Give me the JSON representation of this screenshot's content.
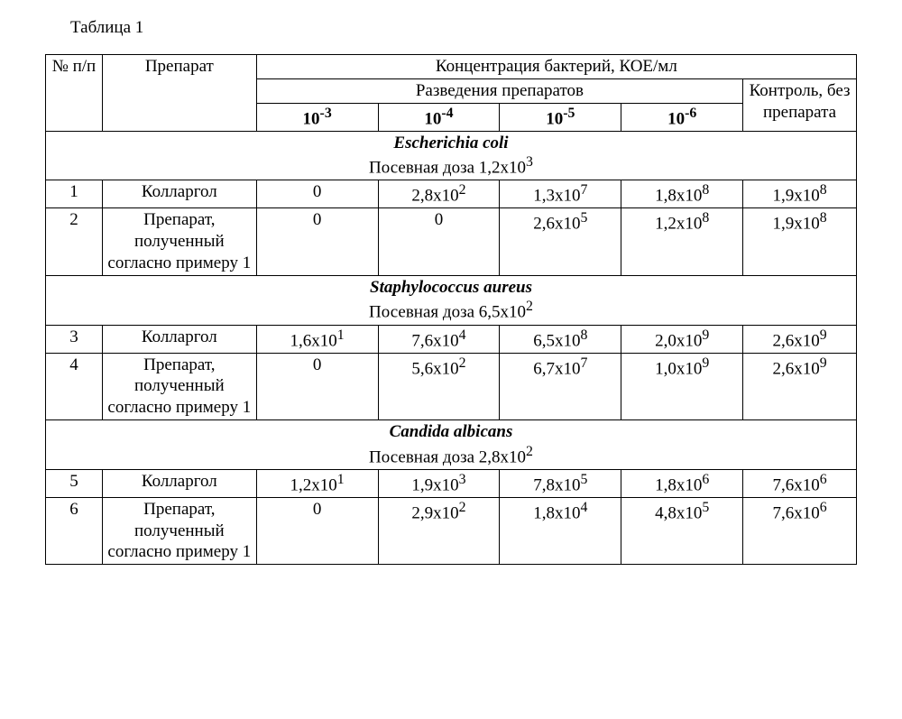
{
  "tableLabel": "Таблица 1",
  "headers": {
    "num": "№ п/п",
    "prep": "Препарат",
    "concHeader": "Концентрация бактерий,  КОЕ/мл",
    "dilutionsHeader": "Разведения препаратов",
    "controlHeader": "Контроль, без препарата",
    "d1": {
      "base": "10",
      "exp": "-3"
    },
    "d2": {
      "base": "10",
      "exp": "-4"
    },
    "d3": {
      "base": "10",
      "exp": "-5"
    },
    "d4": {
      "base": "10",
      "exp": "-6"
    }
  },
  "sections": [
    {
      "organism": "Escherichia coli",
      "doseLabel": "Посевная доза 1,2х10",
      "doseExp": "3",
      "rows": [
        {
          "num": "1",
          "prep": "Колларгол",
          "d1": {
            "plain": "0"
          },
          "d2": {
            "base": "2,8х10",
            "exp": "2"
          },
          "d3": {
            "base": "1,3х10",
            "exp": "7"
          },
          "d4": {
            "base": "1,8х10",
            "exp": "8"
          },
          "ctrl": {
            "base": "1,9х10",
            "exp": "8"
          }
        },
        {
          "num": "2",
          "prep": "Препарат, полученный согласно примеру 1",
          "d1": {
            "plain": "0"
          },
          "d2": {
            "plain": "0"
          },
          "d3": {
            "base": "2,6х10",
            "exp": "5"
          },
          "d4": {
            "base": "1,2х10",
            "exp": "8"
          },
          "ctrl": {
            "base": "1,9х10",
            "exp": "8"
          }
        }
      ]
    },
    {
      "organism": "Staphylococcus aureus",
      "doseLabel": "Посевная доза 6,5х10",
      "doseExp": "2",
      "rows": [
        {
          "num": "3",
          "prep": "Колларгол",
          "d1": {
            "base": "1,6х10",
            "exp": "1"
          },
          "d2": {
            "base": "7,6х10",
            "exp": "4"
          },
          "d3": {
            "base": "6,5х10",
            "exp": "8"
          },
          "d4": {
            "base": "2,0х10",
            "exp": "9"
          },
          "ctrl": {
            "base": "2,6х10",
            "exp": "9"
          }
        },
        {
          "num": "4",
          "prep": "Препарат, полученный согласно примеру 1",
          "d1": {
            "plain": "0"
          },
          "d2": {
            "base": "5,6х10",
            "exp": "2"
          },
          "d3": {
            "base": "6,7х10",
            "exp": "7"
          },
          "d4": {
            "base": "1,0х10",
            "exp": "9"
          },
          "ctrl": {
            "base": "2,6х10",
            "exp": "9"
          }
        }
      ]
    },
    {
      "organism": "Candida albicans",
      "doseLabel": "Посевная доза 2,8х10",
      "doseExp": "2",
      "rows": [
        {
          "num": "5",
          "prep": "Колларгол",
          "d1": {
            "base": "1,2х10",
            "exp": "1"
          },
          "d2": {
            "base": "1,9х10",
            "exp": "3"
          },
          "d3": {
            "base": "7,8х10",
            "exp": "5"
          },
          "d4": {
            "base": "1,8х10",
            "exp": "6"
          },
          "ctrl": {
            "base": "7,6х10",
            "exp": "6"
          }
        },
        {
          "num": "6",
          "prep": "Препарат, полученный согласно примеру 1",
          "d1": {
            "plain": "0"
          },
          "d2": {
            "base": "2,9х10",
            "exp": "2"
          },
          "d3": {
            "base": "1,8х10",
            "exp": "4"
          },
          "d4": {
            "base": "4,8х10",
            "exp": "5"
          },
          "ctrl": {
            "base": "7,6х10",
            "exp": "6"
          }
        }
      ]
    }
  ]
}
